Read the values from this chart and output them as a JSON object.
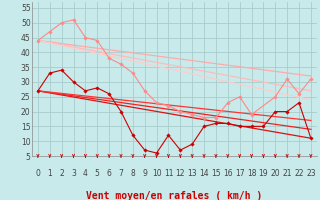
{
  "background_color": "#c8eaea",
  "grid_color": "#a8cccc",
  "xlim": [
    -0.5,
    23.5
  ],
  "ylim": [
    5,
    57
  ],
  "yticks": [
    5,
    10,
    15,
    20,
    25,
    30,
    35,
    40,
    45,
    50,
    55
  ],
  "xticks": [
    0,
    1,
    2,
    3,
    4,
    5,
    6,
    7,
    8,
    9,
    10,
    11,
    12,
    13,
    14,
    15,
    16,
    17,
    18,
    19,
    20,
    21,
    22,
    23
  ],
  "xlabel": "Vent moyen/en rafales ( km/h )",
  "xlabel_color": "#cc0000",
  "xlabel_fontsize": 7,
  "tick_fontsize": 5.5,
  "series": [
    {
      "x": [
        0,
        1,
        2,
        3,
        4,
        5,
        6,
        7,
        8,
        9,
        10,
        11,
        12,
        13,
        14,
        15,
        16,
        17,
        18,
        20,
        21,
        22,
        23
      ],
      "y": [
        44,
        47,
        50,
        51,
        45,
        44,
        38,
        36,
        33,
        27,
        23,
        22,
        20,
        19,
        18,
        18,
        23,
        25,
        19,
        25,
        31,
        26,
        31
      ],
      "color": "#ff8888",
      "linewidth": 0.8,
      "marker": "D",
      "markersize": 1.8,
      "linestyle": "-",
      "zorder": 4
    },
    {
      "x": [
        0,
        23
      ],
      "y": [
        44,
        32
      ],
      "color": "#ffaaaa",
      "linewidth": 0.9,
      "marker": null,
      "markersize": 0,
      "linestyle": "-",
      "zorder": 2
    },
    {
      "x": [
        0,
        23
      ],
      "y": [
        44,
        27
      ],
      "color": "#ffbbbb",
      "linewidth": 0.9,
      "marker": null,
      "markersize": 0,
      "linestyle": "-",
      "zorder": 2
    },
    {
      "x": [
        0,
        23
      ],
      "y": [
        44,
        24
      ],
      "color": "#ffcccc",
      "linewidth": 0.9,
      "marker": null,
      "markersize": 0,
      "linestyle": "-",
      "zorder": 2
    },
    {
      "x": [
        0,
        1,
        2,
        3,
        4,
        5,
        6,
        7,
        8,
        9,
        10,
        11,
        12,
        13,
        14,
        15,
        16,
        17,
        18,
        19,
        20,
        21,
        22,
        23
      ],
      "y": [
        27,
        33,
        34,
        30,
        27,
        28,
        26,
        20,
        12,
        7,
        6,
        12,
        7,
        9,
        15,
        16,
        16,
        15,
        15,
        15,
        20,
        20,
        23,
        11
      ],
      "color": "#cc0000",
      "linewidth": 0.8,
      "marker": "D",
      "markersize": 1.8,
      "linestyle": "-",
      "zorder": 5
    },
    {
      "x": [
        0,
        23
      ],
      "y": [
        27,
        11
      ],
      "color": "#dd1111",
      "linewidth": 0.9,
      "marker": null,
      "markersize": 0,
      "linestyle": "-",
      "zorder": 3
    },
    {
      "x": [
        0,
        23
      ],
      "y": [
        27,
        14
      ],
      "color": "#ee2222",
      "linewidth": 0.9,
      "marker": null,
      "markersize": 0,
      "linestyle": "-",
      "zorder": 3
    },
    {
      "x": [
        0,
        23
      ],
      "y": [
        27,
        17
      ],
      "color": "#ff3333",
      "linewidth": 0.9,
      "marker": null,
      "markersize": 0,
      "linestyle": "-",
      "zorder": 3
    }
  ]
}
